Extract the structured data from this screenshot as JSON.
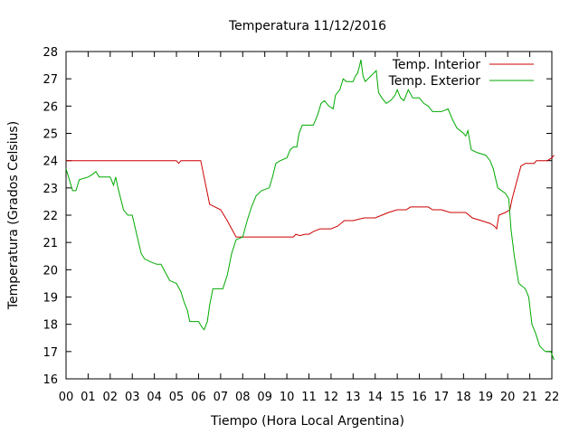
{
  "chart_data": {
    "type": "line",
    "title": "Temperatura 11/12/2016",
    "xlabel": "Tiempo (Hora Local Argentina)",
    "ylabel": "Temperatura (Grados Celsius)",
    "xlim": [
      0,
      22
    ],
    "ylim": [
      16,
      28
    ],
    "x_ticks": [
      "00",
      "01",
      "02",
      "03",
      "04",
      "05",
      "06",
      "07",
      "08",
      "09",
      "10",
      "11",
      "12",
      "13",
      "14",
      "15",
      "16",
      "17",
      "18",
      "19",
      "20",
      "21",
      "22"
    ],
    "y_ticks": [
      "16",
      "17",
      "18",
      "19",
      "20",
      "21",
      "22",
      "23",
      "24",
      "25",
      "26",
      "27",
      "28"
    ],
    "grid": false,
    "legend_position": "top-right",
    "series": [
      {
        "name": "Temp. Interior",
        "color": "#cc0000",
        "points": [
          [
            0,
            24.0
          ],
          [
            1,
            24.0
          ],
          [
            2,
            24.0
          ],
          [
            3,
            24.0
          ],
          [
            4,
            24.0
          ],
          [
            5,
            24.0
          ],
          [
            5.1,
            23.9
          ],
          [
            5.2,
            24.0
          ],
          [
            6.1,
            24.0
          ],
          [
            6.3,
            23.2
          ],
          [
            6.5,
            22.4
          ],
          [
            7.0,
            22.2
          ],
          [
            7.3,
            21.8
          ],
          [
            7.5,
            21.5
          ],
          [
            7.7,
            21.2
          ],
          [
            8.0,
            21.2
          ],
          [
            9.0,
            21.2
          ],
          [
            10.0,
            21.2
          ],
          [
            10.3,
            21.2
          ],
          [
            10.4,
            21.3
          ],
          [
            10.6,
            21.25
          ],
          [
            10.8,
            21.3
          ],
          [
            11.0,
            21.3
          ],
          [
            11.2,
            21.4
          ],
          [
            11.5,
            21.5
          ],
          [
            12.0,
            21.5
          ],
          [
            12.3,
            21.6
          ],
          [
            12.6,
            21.8
          ],
          [
            13.0,
            21.8
          ],
          [
            13.5,
            21.9
          ],
          [
            14.0,
            21.9
          ],
          [
            14.3,
            22.0
          ],
          [
            14.6,
            22.1
          ],
          [
            15.0,
            22.2
          ],
          [
            15.4,
            22.2
          ],
          [
            15.6,
            22.3
          ],
          [
            16.0,
            22.3
          ],
          [
            16.4,
            22.3
          ],
          [
            16.6,
            22.2
          ],
          [
            17.0,
            22.2
          ],
          [
            17.4,
            22.1
          ],
          [
            17.8,
            22.1
          ],
          [
            18.1,
            22.1
          ],
          [
            18.4,
            21.9
          ],
          [
            18.8,
            21.8
          ],
          [
            19.2,
            21.7
          ],
          [
            19.4,
            21.6
          ],
          [
            19.5,
            21.5
          ],
          [
            19.6,
            22.0
          ],
          [
            19.9,
            22.1
          ],
          [
            20.1,
            22.2
          ],
          [
            20.2,
            22.6
          ],
          [
            20.4,
            23.2
          ],
          [
            20.6,
            23.8
          ],
          [
            20.8,
            23.9
          ],
          [
            21.2,
            23.9
          ],
          [
            21.3,
            24.0
          ],
          [
            21.8,
            24.0
          ],
          [
            22.0,
            24.1
          ],
          [
            22.1,
            24.2
          ]
        ]
      },
      {
        "name": "Temp. Exterior",
        "color": "#00aa00",
        "points": [
          [
            0,
            23.7
          ],
          [
            0.15,
            23.3
          ],
          [
            0.3,
            22.9
          ],
          [
            0.45,
            22.9
          ],
          [
            0.6,
            23.3
          ],
          [
            1.0,
            23.4
          ],
          [
            1.2,
            23.5
          ],
          [
            1.35,
            23.6
          ],
          [
            1.5,
            23.4
          ],
          [
            2.0,
            23.4
          ],
          [
            2.15,
            23.1
          ],
          [
            2.25,
            23.4
          ],
          [
            2.35,
            23.0
          ],
          [
            2.6,
            22.2
          ],
          [
            2.8,
            22.0
          ],
          [
            3.0,
            22.0
          ],
          [
            3.2,
            21.3
          ],
          [
            3.4,
            20.6
          ],
          [
            3.55,
            20.4
          ],
          [
            3.8,
            20.3
          ],
          [
            4.1,
            20.2
          ],
          [
            4.3,
            20.2
          ],
          [
            4.5,
            19.9
          ],
          [
            4.7,
            19.6
          ],
          [
            5.0,
            19.5
          ],
          [
            5.2,
            19.2
          ],
          [
            5.35,
            18.8
          ],
          [
            5.5,
            18.5
          ],
          [
            5.6,
            18.1
          ],
          [
            6.0,
            18.1
          ],
          [
            6.15,
            17.9
          ],
          [
            6.25,
            17.8
          ],
          [
            6.4,
            18.1
          ],
          [
            6.5,
            18.7
          ],
          [
            6.65,
            19.3
          ],
          [
            7.1,
            19.3
          ],
          [
            7.3,
            19.8
          ],
          [
            7.5,
            20.6
          ],
          [
            7.7,
            21.1
          ],
          [
            8.0,
            21.2
          ],
          [
            8.2,
            21.8
          ],
          [
            8.4,
            22.3
          ],
          [
            8.6,
            22.7
          ],
          [
            8.85,
            22.9
          ],
          [
            9.2,
            23.0
          ],
          [
            9.35,
            23.4
          ],
          [
            9.5,
            23.9
          ],
          [
            9.7,
            24.0
          ],
          [
            10.0,
            24.1
          ],
          [
            10.15,
            24.4
          ],
          [
            10.3,
            24.5
          ],
          [
            10.45,
            24.5
          ],
          [
            10.55,
            25.0
          ],
          [
            10.7,
            25.3
          ],
          [
            11.2,
            25.3
          ],
          [
            11.4,
            25.7
          ],
          [
            11.55,
            26.1
          ],
          [
            11.7,
            26.2
          ],
          [
            11.9,
            26.0
          ],
          [
            12.1,
            25.9
          ],
          [
            12.2,
            26.4
          ],
          [
            12.4,
            26.6
          ],
          [
            12.55,
            27.0
          ],
          [
            12.7,
            26.9
          ],
          [
            13.0,
            26.9
          ],
          [
            13.1,
            27.1
          ],
          [
            13.2,
            27.2
          ],
          [
            13.3,
            27.5
          ],
          [
            13.35,
            27.7
          ],
          [
            13.45,
            27.1
          ],
          [
            13.55,
            26.9
          ],
          [
            13.8,
            27.1
          ],
          [
            14.05,
            27.3
          ],
          [
            14.15,
            26.5
          ],
          [
            14.3,
            26.3
          ],
          [
            14.5,
            26.1
          ],
          [
            14.7,
            26.2
          ],
          [
            14.9,
            26.4
          ],
          [
            15.0,
            26.6
          ],
          [
            15.15,
            26.3
          ],
          [
            15.3,
            26.2
          ],
          [
            15.5,
            26.6
          ],
          [
            15.7,
            26.3
          ],
          [
            16.0,
            26.3
          ],
          [
            16.2,
            26.1
          ],
          [
            16.4,
            26.0
          ],
          [
            16.6,
            25.8
          ],
          [
            17.0,
            25.8
          ],
          [
            17.3,
            25.9
          ],
          [
            17.5,
            25.5
          ],
          [
            17.7,
            25.2
          ],
          [
            18.0,
            25.0
          ],
          [
            18.1,
            24.9
          ],
          [
            18.2,
            25.1
          ],
          [
            18.35,
            24.4
          ],
          [
            18.6,
            24.3
          ],
          [
            19.0,
            24.2
          ],
          [
            19.2,
            24.0
          ],
          [
            19.35,
            23.7
          ],
          [
            19.55,
            23.0
          ],
          [
            19.9,
            22.8
          ],
          [
            20.05,
            22.6
          ],
          [
            20.15,
            21.5
          ],
          [
            20.3,
            20.5
          ],
          [
            20.5,
            19.5
          ],
          [
            20.8,
            19.3
          ],
          [
            20.95,
            19.0
          ],
          [
            21.1,
            18.0
          ],
          [
            21.25,
            17.7
          ],
          [
            21.45,
            17.2
          ],
          [
            21.7,
            17.0
          ],
          [
            21.95,
            17.0
          ],
          [
            22.1,
            16.7
          ]
        ]
      }
    ]
  }
}
